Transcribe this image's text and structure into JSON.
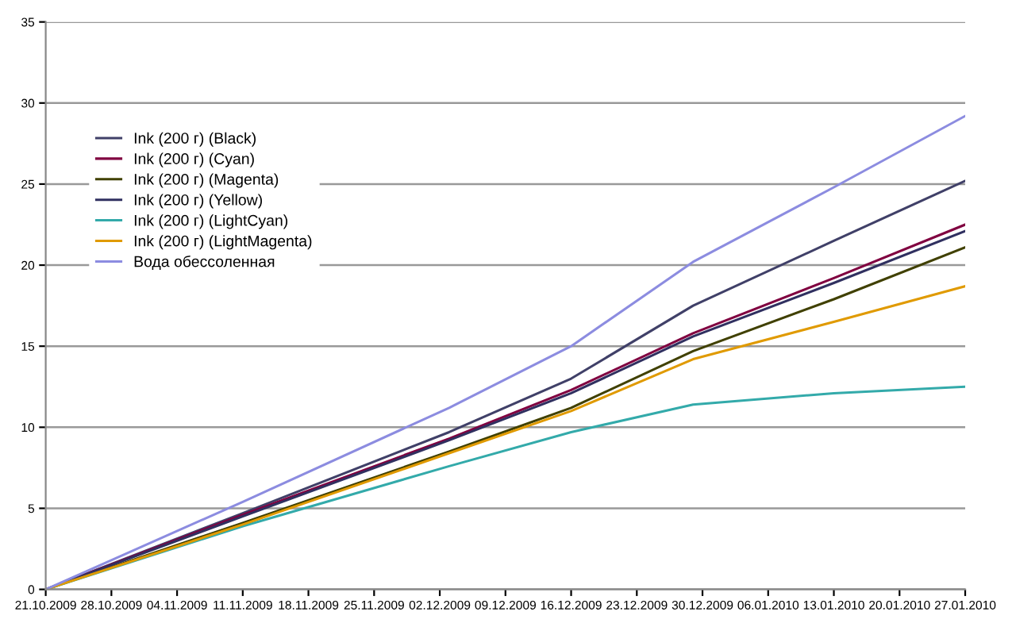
{
  "chart_data": {
    "type": "line",
    "x": [
      "2009-10-21",
      "2009-11-11",
      "2009-12-03",
      "2009-12-16",
      "2009-12-29",
      "2010-01-13",
      "2010-01-27"
    ],
    "series": [
      {
        "name": "Ink (200 г) (Black)",
        "color": "#404068",
        "values": [
          0,
          4.7,
          9.7,
          13,
          17.5,
          21.5,
          25.2
        ]
      },
      {
        "name": "Ink (200 г) (Cyan)",
        "color": "#800040",
        "values": [
          0,
          4.6,
          9.3,
          12.3,
          15.8,
          19.2,
          22.5
        ]
      },
      {
        "name": "Ink (200 г) (Magenta)",
        "color": "#404000",
        "values": [
          0,
          4.1,
          8.5,
          11.2,
          14.7,
          17.9,
          21.1
        ]
      },
      {
        "name": "Ink (200 г) (Yellow)",
        "color": "#303060",
        "values": [
          0,
          4.5,
          9.2,
          12.1,
          15.6,
          18.9,
          22.1
        ]
      },
      {
        "name": "Ink (200 г) (LightCyan)",
        "color": "#33aaaa",
        "values": [
          0,
          3.9,
          7.6,
          9.7,
          11.4,
          12.1,
          12.5
        ]
      },
      {
        "name": "Ink (200 г) (LightMagenta)",
        "color": "#e09a00",
        "values": [
          0,
          4.0,
          8.4,
          11.0,
          14.2,
          16.5,
          18.7
        ]
      },
      {
        "name": "Вода обессоленная",
        "color": "#8c8ce0",
        "values": [
          0,
          5.4,
          11.2,
          15,
          20.2,
          24.8,
          29.2
        ]
      }
    ],
    "xlim": [
      "2009-10-21",
      "2010-01-27"
    ],
    "xticks": [
      {
        "value": "2009-10-21",
        "label": "21.10.2009"
      },
      {
        "value": "2009-10-28",
        "label": "28.10.2009"
      },
      {
        "value": "2009-11-04",
        "label": "04.11.2009"
      },
      {
        "value": "2009-11-11",
        "label": "11.11.2009"
      },
      {
        "value": "2009-11-18",
        "label": "18.11.2009"
      },
      {
        "value": "2009-11-25",
        "label": "25.11.2009"
      },
      {
        "value": "2009-12-02",
        "label": "02.12.2009"
      },
      {
        "value": "2009-12-09",
        "label": "09.12.2009"
      },
      {
        "value": "2009-12-16",
        "label": "16.12.2009"
      },
      {
        "value": "2009-12-23",
        "label": "23.12.2009"
      },
      {
        "value": "2009-12-30",
        "label": "30.12.2009"
      },
      {
        "value": "2010-01-06",
        "label": "06.01.2010"
      },
      {
        "value": "2010-01-13",
        "label": "13.01.2010"
      },
      {
        "value": "2010-01-20",
        "label": "20.01.2010"
      },
      {
        "value": "2010-01-27",
        "label": "27.01.2010"
      }
    ],
    "ylim": [
      0,
      35
    ],
    "yticks": [
      0,
      5,
      10,
      15,
      20,
      25,
      30,
      35
    ],
    "grid": "y",
    "legend": "upper left",
    "marker": "none",
    "line_style": "solid"
  }
}
